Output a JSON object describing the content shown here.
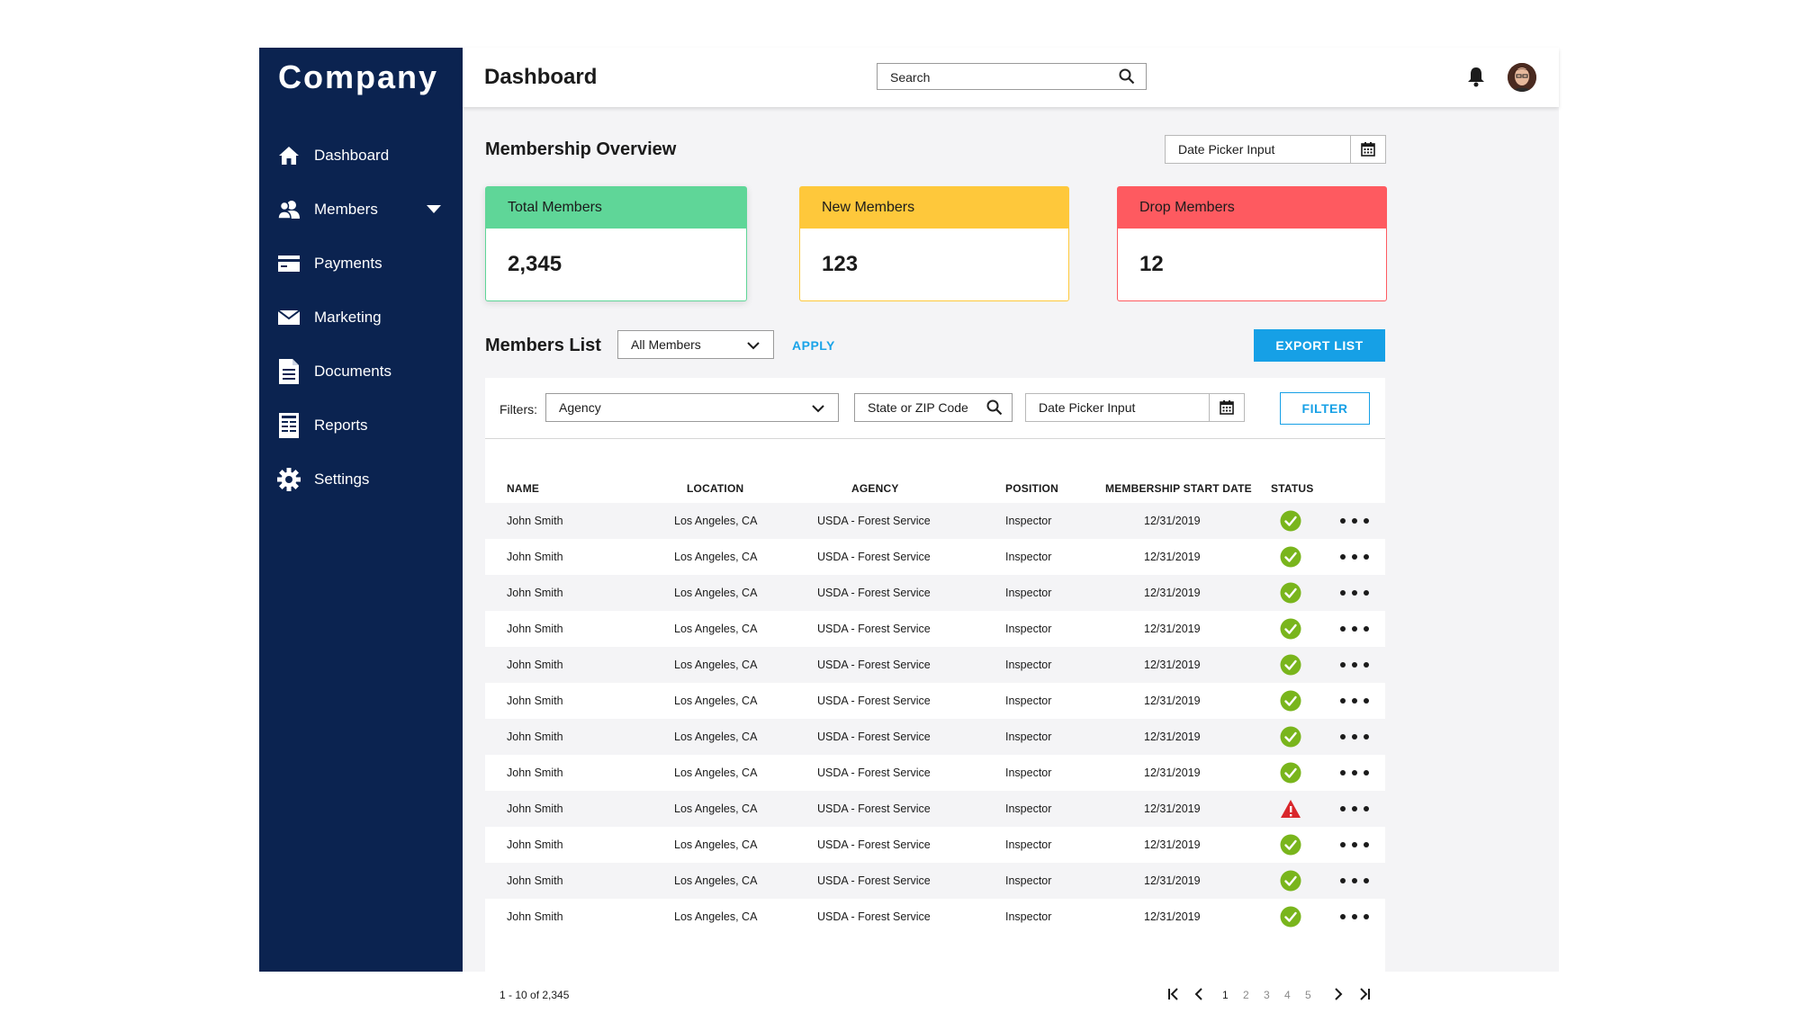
{
  "app": {
    "logo": "Company",
    "colors": {
      "sidebar": "#0b2350",
      "accent": "#16a0e6",
      "success": "#79b51c",
      "warning": "#d9262b"
    }
  },
  "sidebar": {
    "items": [
      {
        "label": "Dashboard",
        "icon": "home-icon"
      },
      {
        "label": "Members",
        "icon": "members-icon"
      },
      {
        "label": "Payments",
        "icon": "card-icon"
      },
      {
        "label": "Marketing",
        "icon": "envelope-icon"
      },
      {
        "label": "Documents",
        "icon": "document-icon"
      },
      {
        "label": "Reports",
        "icon": "reports-icon"
      },
      {
        "label": "Settings",
        "icon": "gear-icon"
      }
    ]
  },
  "header": {
    "title": "Dashboard",
    "search_placeholder": "Search"
  },
  "overview": {
    "title": "Membership Overview",
    "date_picker": "Date Picker Input",
    "cards": [
      {
        "label": "Total Members",
        "value": "2,345",
        "color": "#5fd698"
      },
      {
        "label": "New Members",
        "value": "123",
        "color": "#fec83b"
      },
      {
        "label": "Drop Members",
        "value": "12",
        "color": "#fe5a60"
      }
    ]
  },
  "members": {
    "title": "Members List",
    "select_value": "All Members",
    "apply_label": "APPLY",
    "export_label": "EXPORT LIST",
    "filters_label": "Filters:",
    "agency_value": "Agency",
    "zip_placeholder": "State or ZIP Code",
    "date_picker": "Date Picker Input",
    "filter_label": "FILTER",
    "columns": [
      "NAME",
      "LOCATION",
      "AGENCY",
      "POSITION",
      "MEMBERSHIP START DATE",
      "STATUS"
    ],
    "rows": [
      {
        "name": "John Smith",
        "location": "Los Angeles, CA",
        "agency": "USDA - Forest Service",
        "position": "Inspector",
        "start": "12/31/2019",
        "status": "ok"
      },
      {
        "name": "John Smith",
        "location": "Los Angeles, CA",
        "agency": "USDA - Forest Service",
        "position": "Inspector",
        "start": "12/31/2019",
        "status": "ok"
      },
      {
        "name": "John Smith",
        "location": "Los Angeles, CA",
        "agency": "USDA - Forest Service",
        "position": "Inspector",
        "start": "12/31/2019",
        "status": "ok"
      },
      {
        "name": "John Smith",
        "location": "Los Angeles, CA",
        "agency": "USDA - Forest Service",
        "position": "Inspector",
        "start": "12/31/2019",
        "status": "ok"
      },
      {
        "name": "John Smith",
        "location": "Los Angeles, CA",
        "agency": "USDA - Forest Service",
        "position": "Inspector",
        "start": "12/31/2019",
        "status": "ok"
      },
      {
        "name": "John Smith",
        "location": "Los Angeles, CA",
        "agency": "USDA - Forest Service",
        "position": "Inspector",
        "start": "12/31/2019",
        "status": "ok"
      },
      {
        "name": "John Smith",
        "location": "Los Angeles, CA",
        "agency": "USDA - Forest Service",
        "position": "Inspector",
        "start": "12/31/2019",
        "status": "ok"
      },
      {
        "name": "John Smith",
        "location": "Los Angeles, CA",
        "agency": "USDA - Forest Service",
        "position": "Inspector",
        "start": "12/31/2019",
        "status": "ok"
      },
      {
        "name": "John Smith",
        "location": "Los Angeles, CA",
        "agency": "USDA - Forest Service",
        "position": "Inspector",
        "start": "12/31/2019",
        "status": "warning"
      },
      {
        "name": "John Smith",
        "location": "Los Angeles, CA",
        "agency": "USDA - Forest Service",
        "position": "Inspector",
        "start": "12/31/2019",
        "status": "ok"
      },
      {
        "name": "John Smith",
        "location": "Los Angeles, CA",
        "agency": "USDA - Forest Service",
        "position": "Inspector",
        "start": "12/31/2019",
        "status": "ok"
      },
      {
        "name": "John Smith",
        "location": "Los Angeles, CA",
        "agency": "USDA - Forest Service",
        "position": "Inspector",
        "start": "12/31/2019",
        "status": "ok"
      }
    ],
    "range": "1 - 10 of 2,345",
    "pages": [
      "1",
      "2",
      "3",
      "4",
      "5"
    ],
    "current_page": "1"
  }
}
